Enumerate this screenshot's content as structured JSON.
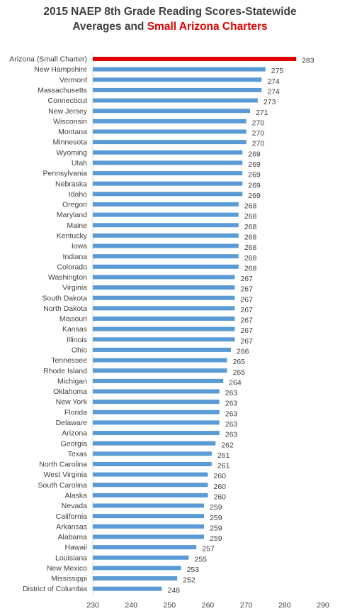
{
  "chart_data": {
    "type": "bar",
    "orientation": "horizontal",
    "title_line1": "2015 NAEP 8th Grade Reading Scores-Statewide",
    "title_line2_prefix": "Averages and ",
    "title_line2_highlight": "Small Arizona Charters",
    "xlim": [
      230,
      290
    ],
    "xticks": [
      230,
      240,
      250,
      260,
      270,
      280,
      290
    ],
    "grid": false,
    "bar_color": "#5b9bd5",
    "highlight_color": "#e00000",
    "title_color": "#404040",
    "categories": [
      "Arizona (Small Charter)",
      "New Hampshire",
      "Vermont",
      "Massachusetts",
      "Connecticut",
      "New Jersey",
      "Wisconsin",
      "Montana",
      "Minnesota",
      "Wyoming",
      "Utah",
      "Pennsylvania",
      "Nebraska",
      "Idaho",
      "Oregon",
      "Maryland",
      "Maine",
      "Kentucky",
      "Iowa",
      "Indiana",
      "Colorado",
      "Washington",
      "Virginia",
      "South Dakota",
      "North Dakota",
      "Missouri",
      "Kansas",
      "Illinois",
      "Ohio",
      "Tennessee",
      "Rhode Island",
      "Michigan",
      "Oklahoma",
      "New York",
      "Florida",
      "Delaware",
      "Arizona",
      "Georgia",
      "Texas",
      "North Carolina",
      "West Virginia",
      "South Carolina",
      "Alaska",
      "Nevada",
      "California",
      "Arkansas",
      "Alabama",
      "Hawaii",
      "Louisiana",
      "New Mexico",
      "Mississippi",
      "District of Columbia"
    ],
    "values": [
      283,
      275,
      274,
      274,
      273,
      271,
      270,
      270,
      270,
      269,
      269,
      269,
      269,
      269,
      268,
      268,
      268,
      268,
      268,
      268,
      268,
      267,
      267,
      267,
      267,
      267,
      267,
      267,
      266,
      265,
      265,
      264,
      263,
      263,
      263,
      263,
      263,
      262,
      261,
      261,
      260,
      260,
      260,
      259,
      259,
      259,
      259,
      257,
      255,
      253,
      252,
      248
    ],
    "highlight_index": 0
  }
}
